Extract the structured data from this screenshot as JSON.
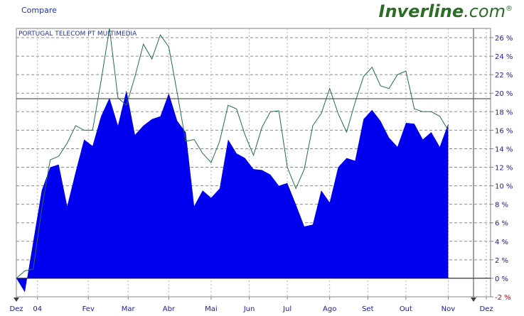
{
  "header": {
    "compare_label": "Compare",
    "logo_brand": "Inverline",
    "logo_tld": ".com",
    "logo_mark": "®"
  },
  "chart_data": {
    "type": "area",
    "title": "PORTUGAL TELECOM PT MULTIMEDIA",
    "ylim": [
      -2,
      27
    ],
    "yticks": [
      -2,
      0,
      2,
      4,
      6,
      8,
      10,
      12,
      14,
      16,
      18,
      20,
      22,
      24,
      26
    ],
    "ytick_labels": [
      "-2 %",
      "0 %",
      "2 %",
      "4 %",
      "6 %",
      "8 %",
      "10 %",
      "12 %",
      "14 %",
      "16 %",
      "18 %",
      "20 %",
      "22 %",
      "24 %",
      "26 %"
    ],
    "xticks": [
      {
        "label": "Dez",
        "pos": 0
      },
      {
        "label": "04",
        "pos": 2.5
      },
      {
        "label": "Fev",
        "pos": 8.5
      },
      {
        "label": "Mar",
        "pos": 13.2
      },
      {
        "label": "Abr",
        "pos": 18.0
      },
      {
        "label": "Mai",
        "pos": 23.0
      },
      {
        "label": "Jun",
        "pos": 27.5
      },
      {
        "label": "Jul",
        "pos": 32.0
      },
      {
        "label": "Ago",
        "pos": 37.0
      },
      {
        "label": "Set",
        "pos": 41.5
      },
      {
        "label": "Out",
        "pos": 46.0
      },
      {
        "label": "Nov",
        "pos": 51.0
      },
      {
        "label": "Dez",
        "pos": 55.5
      }
    ],
    "x_count": 57,
    "reference_line": 19.4,
    "grid": true,
    "series": [
      {
        "name": "",
        "style": "area",
        "color": "#0000ee",
        "values": [
          0,
          -1.5,
          4.0,
          9.5,
          12.0,
          12.3,
          7.8,
          11.5,
          15.0,
          14.3,
          17.5,
          19.5,
          16.5,
          20.3,
          15.5,
          16.5,
          17.2,
          17.5,
          20.0,
          17.0,
          15.8,
          7.8,
          9.5,
          8.7,
          9.7,
          15.0,
          13.5,
          13.0,
          11.8,
          11.7,
          11.2,
          10.0,
          10.3,
          8.0,
          5.6,
          5.8,
          9.5,
          8.2,
          12.0,
          13.0,
          12.7,
          17.2,
          18.2,
          17.0,
          15.2,
          14.2,
          16.8,
          16.7,
          15.0,
          15.8,
          14.2,
          16.7
        ]
      },
      {
        "name": "",
        "style": "line",
        "color": "#226e4a",
        "values": [
          0,
          0.8,
          1.0,
          7.5,
          12.8,
          13.2,
          14.6,
          16.5,
          16.0,
          16.0,
          21.3,
          27.0,
          19.5,
          18.7,
          21.8,
          25.3,
          23.7,
          26.3,
          25.0,
          20.0,
          14.8,
          15.0,
          13.5,
          12.5,
          14.8,
          18.7,
          18.3,
          15.5,
          13.3,
          16.3,
          18.0,
          18.1,
          12.0,
          9.7,
          11.8,
          16.5,
          17.8,
          20.5,
          17.8,
          15.8,
          19.0,
          21.8,
          22.8,
          20.8,
          20.5,
          22.0,
          22.4,
          18.3,
          18.0,
          18.0,
          17.5,
          16.0
        ]
      }
    ]
  }
}
